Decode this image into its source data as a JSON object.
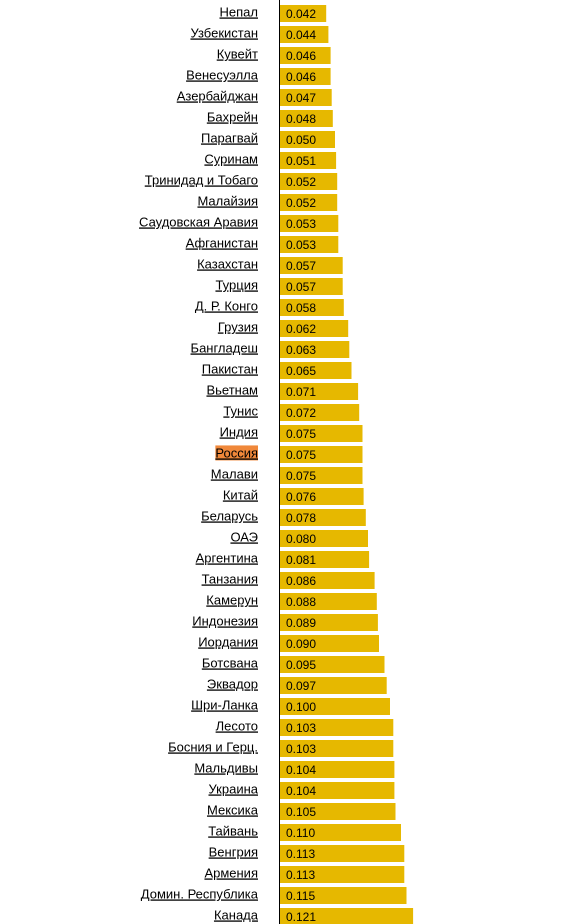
{
  "chart_data": {
    "type": "bar",
    "orientation": "horizontal",
    "color": "#e6b800",
    "highlight_index": 21,
    "highlight_color": "#f0883a",
    "categories": [
      "Непал",
      "Узбекистан",
      "Кувейт",
      "Венесуэлла",
      "Азербайджан",
      "Бахрейн",
      "Парагвай",
      "Суринам",
      "Тринидад и Тобаго",
      "Малайзия",
      "Саудовская Аравия",
      "Афганистан",
      "Казахстан",
      "Турция",
      "Д. Р. Конго",
      "Грузия",
      "Бангладеш",
      "Пакистан",
      "Вьетнам",
      "Тунис",
      "Индия",
      "Россия",
      "Малави",
      "Китай",
      "Беларусь",
      "ОАЭ",
      "Аргентина",
      "Танзания",
      "Камерун",
      "Индонезия",
      "Иордания",
      "Ботсвана",
      "Эквадор",
      "Шри-Ланка",
      "Лесото",
      "Босния и Герц.",
      "Мальдивы",
      "Украина",
      "Мексика",
      "Тайвань",
      "Венгрия",
      "Армения",
      "Домин. Республика",
      "Канада"
    ],
    "values": [
      0.042,
      0.044,
      0.046,
      0.046,
      0.047,
      0.048,
      0.05,
      0.051,
      0.052,
      0.052,
      0.053,
      0.053,
      0.057,
      0.057,
      0.058,
      0.062,
      0.063,
      0.065,
      0.071,
      0.072,
      0.075,
      0.075,
      0.075,
      0.076,
      0.078,
      0.08,
      0.081,
      0.086,
      0.088,
      0.089,
      0.09,
      0.095,
      0.097,
      0.1,
      0.103,
      0.103,
      0.104,
      0.104,
      0.105,
      0.11,
      0.113,
      0.113,
      0.115,
      0.121
    ],
    "value_labels": [
      "0.042",
      "0.044",
      "0.046",
      "0.046",
      "0.047",
      "0.048",
      "0.050",
      "0.051",
      "0.052",
      "0.052",
      "0.053",
      "0.053",
      "0.057",
      "0.057",
      "0.058",
      "0.062",
      "0.063",
      "0.065",
      "0.071",
      "0.072",
      "0.075",
      "0.075",
      "0.075",
      "0.076",
      "0.078",
      "0.080",
      "0.081",
      "0.086",
      "0.088",
      "0.089",
      "0.090",
      "0.095",
      "0.097",
      "0.100",
      "0.103",
      "0.103",
      "0.104",
      "0.104",
      "0.105",
      "0.110",
      "0.113",
      "0.113",
      "0.115",
      "0.121"
    ]
  }
}
